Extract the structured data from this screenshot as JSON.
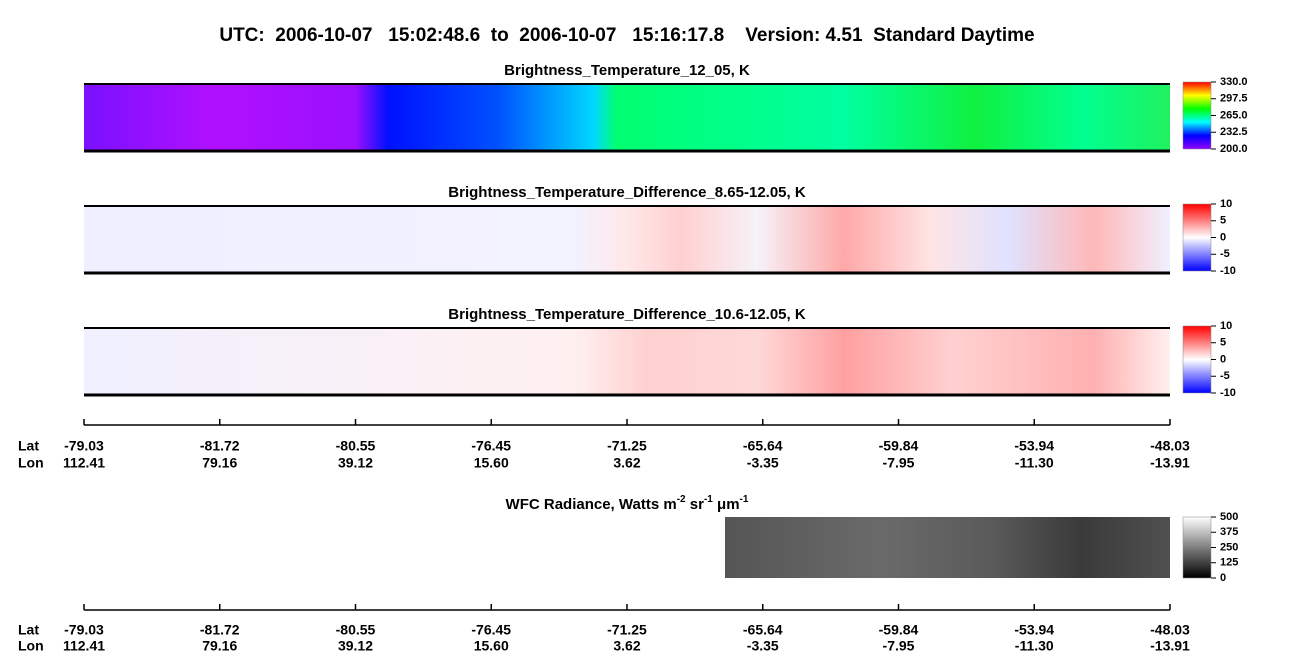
{
  "header": {
    "title": "UTC:  2006-10-07   15:02:48.6  to  2006-10-07   15:16:17.8    Version: 4.51  Standard Daytime"
  },
  "panels": [
    {
      "title": "Brightness_Temperature_12_05, K",
      "colorbar": [
        "330.0",
        "297.5",
        "265.0",
        "232.5",
        "200.0"
      ]
    },
    {
      "title": "Brightness_Temperature_Difference_8.65-12.05, K",
      "colorbar": [
        "10",
        "5",
        "0",
        "-5",
        "-10"
      ]
    },
    {
      "title": "Brightness_Temperature_Difference_10.6-12.05, K",
      "colorbar": [
        "10",
        "5",
        "0",
        "-5",
        "-10"
      ]
    }
  ],
  "wfc": {
    "title": [
      "WFC Radiance, Watts m",
      "-2",
      " sr",
      "-1",
      " μm",
      "-1"
    ],
    "colorbar": [
      "500",
      "375",
      "250",
      "125",
      "0"
    ]
  },
  "axis": {
    "lat_label": "Lat",
    "lon_label": "Lon",
    "lat": [
      "-79.03",
      "-81.72",
      "-80.55",
      "-76.45",
      "-71.25",
      "-65.64",
      "-59.84",
      "-53.94",
      "-48.03"
    ],
    "lon": [
      "112.41",
      "79.16",
      "39.12",
      "15.60",
      "3.62",
      "-3.35",
      "-7.95",
      "-11.30",
      "-13.91"
    ]
  }
}
